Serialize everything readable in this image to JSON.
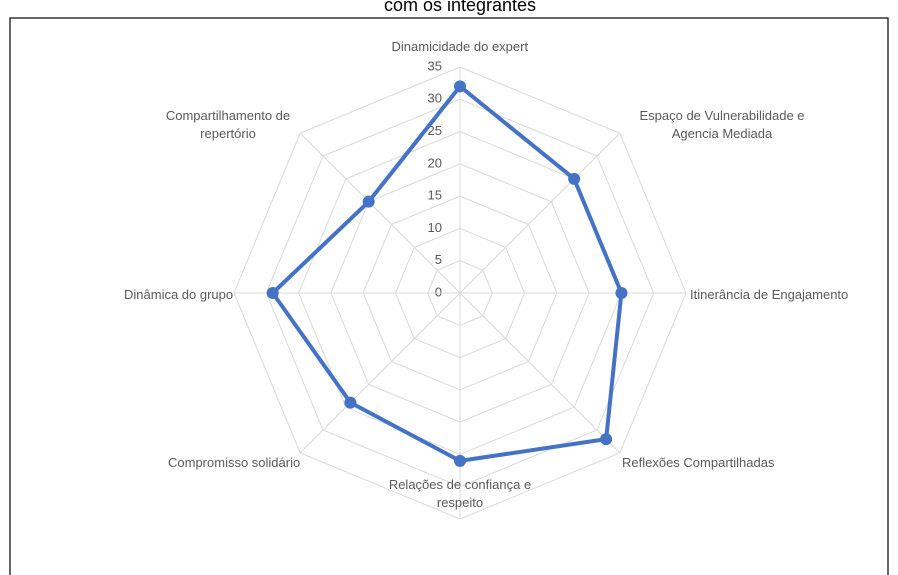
{
  "chart_data": {
    "type": "radar",
    "title": "com os integrantes",
    "categories": [
      "Dinamicidade do expert",
      "Espaço de Vulnerabilidade e Agencia Mediada",
      "Itinerância de Engajamento",
      "Reflexões Compartilhadas",
      "Relações de confiança e respeito",
      "Compromisso solidário",
      "Dinâmica do grupo",
      "Compartilhamento de repertório"
    ],
    "series": [
      {
        "name": null,
        "color": "#4472c4",
        "values": [
          32,
          25,
          25,
          32,
          26,
          24,
          29,
          20
        ]
      }
    ],
    "rlim": [
      0,
      35
    ],
    "rticks": [
      0,
      5,
      10,
      15,
      20,
      25,
      30,
      35
    ],
    "grid": true
  }
}
